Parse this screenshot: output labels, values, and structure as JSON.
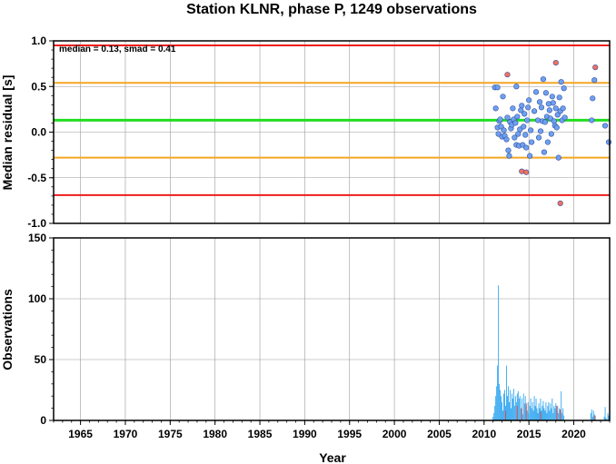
{
  "chart_data": [
    {
      "type": "scatter",
      "title": "Station KLNR, phase P, 1249 observations",
      "xlabel": "",
      "ylabel": "Median residual [s]",
      "xlim": [
        1962,
        2024
      ],
      "ylim": [
        -1.0,
        1.0
      ],
      "y_ticks": [
        "1.0",
        "0.5",
        "0.0",
        "-0.5",
        "-1.0"
      ],
      "annotation": "median = 0.13, smad = 0.41",
      "grid": true,
      "reference_lines": [
        {
          "value": 0.95,
          "color": "#ee1c1c"
        },
        {
          "value": 0.54,
          "color": "#f5a623"
        },
        {
          "value": 0.13,
          "color": "#22dd22"
        },
        {
          "value": -0.28,
          "color": "#f5a623"
        },
        {
          "value": -0.69,
          "color": "#ee1c1c"
        }
      ],
      "series": [
        {
          "color": "#6fa0f0",
          "points": [
            [
              2011.2,
              0.49
            ],
            [
              2011.3,
              0.26
            ],
            [
              2011.5,
              0.49
            ],
            [
              2011.5,
              0.05
            ],
            [
              2011.6,
              -0.02
            ],
            [
              2011.7,
              0.12
            ],
            [
              2011.8,
              0.14
            ],
            [
              2011.9,
              0.06
            ],
            [
              2012.0,
              -0.05
            ],
            [
              2012.1,
              0.39
            ],
            [
              2012.2,
              0.02
            ],
            [
              2012.3,
              -0.04
            ],
            [
              2012.5,
              -0.08
            ],
            [
              2012.6,
              0.16
            ],
            [
              2012.7,
              -0.2
            ],
            [
              2012.8,
              -0.26
            ],
            [
              2012.9,
              0.11
            ],
            [
              2013.0,
              0.04
            ],
            [
              2013.1,
              0.08
            ],
            [
              2013.2,
              0.26
            ],
            [
              2013.3,
              0.14
            ],
            [
              2013.4,
              -0.06
            ],
            [
              2013.5,
              0.1
            ],
            [
              2013.6,
              0.5
            ],
            [
              2013.6,
              -0.14
            ],
            [
              2013.7,
              0.17
            ],
            [
              2013.8,
              -0.02
            ],
            [
              2013.9,
              -0.15
            ],
            [
              2014.0,
              0.03
            ],
            [
              2014.1,
              0.24
            ],
            [
              2014.2,
              0.29
            ],
            [
              2014.3,
              -0.14
            ],
            [
              2014.4,
              0.06
            ],
            [
              2014.5,
              0.2
            ],
            [
              2014.6,
              -0.03
            ],
            [
              2014.7,
              -0.17
            ],
            [
              2014.8,
              0.13
            ],
            [
              2014.9,
              0.27
            ],
            [
              2015.0,
              0.35
            ],
            [
              2015.1,
              -0.26
            ],
            [
              2015.2,
              0.02
            ],
            [
              2015.3,
              -0.11
            ],
            [
              2015.6,
              0.23
            ],
            [
              2015.8,
              0.44
            ],
            [
              2016.0,
              0.13
            ],
            [
              2016.1,
              -0.06
            ],
            [
              2016.2,
              0.33
            ],
            [
              2016.3,
              0.01
            ],
            [
              2016.4,
              0.27
            ],
            [
              2016.5,
              0.12
            ],
            [
              2016.6,
              0.58
            ],
            [
              2016.7,
              -0.22
            ],
            [
              2016.8,
              0.11
            ],
            [
              2016.9,
              0.43
            ],
            [
              2017.0,
              0.17
            ],
            [
              2017.1,
              -0.11
            ],
            [
              2017.2,
              0.31
            ],
            [
              2017.3,
              0.24
            ],
            [
              2017.4,
              0.15
            ],
            [
              2017.5,
              -0.02
            ],
            [
              2017.6,
              0.39
            ],
            [
              2017.7,
              0.32
            ],
            [
              2017.8,
              0.12
            ],
            [
              2017.9,
              0.07
            ],
            [
              2018.0,
              0.26
            ],
            [
              2018.1,
              0.05
            ],
            [
              2018.2,
              0.19
            ],
            [
              2018.3,
              -0.28
            ],
            [
              2018.4,
              0.38
            ],
            [
              2018.5,
              0.23
            ],
            [
              2018.6,
              0.55
            ],
            [
              2018.7,
              0.13
            ],
            [
              2018.8,
              0.26
            ],
            [
              2018.9,
              0.48
            ],
            [
              2019.0,
              0.16
            ],
            [
              2022.0,
              0.13
            ],
            [
              2022.1,
              0.37
            ],
            [
              2022.3,
              0.57
            ],
            [
              2023.5,
              0.07
            ],
            [
              2023.9,
              -0.11
            ]
          ]
        },
        {
          "color": "#f07060",
          "points": [
            [
              2012.6,
              0.63
            ],
            [
              2014.2,
              -0.43
            ],
            [
              2014.7,
              -0.44
            ],
            [
              2018.0,
              0.76
            ],
            [
              2018.5,
              -0.78
            ],
            [
              2022.4,
              0.71
            ]
          ]
        }
      ]
    },
    {
      "type": "bar",
      "title": "",
      "xlabel": "Year",
      "ylabel": "Observations",
      "xlim": [
        1962,
        2024
      ],
      "ylim": [
        0,
        150
      ],
      "y_ticks": [
        "150",
        "100",
        "50",
        "0"
      ],
      "x_ticks": [
        "1965",
        "1970",
        "1975",
        "1980",
        "1985",
        "1990",
        "1995",
        "2000",
        "2005",
        "2010",
        "2015",
        "2020"
      ],
      "grid": true,
      "series": [
        {
          "color": "#35a8f0",
          "x": [
            2011.0,
            2011.1,
            2011.2,
            2011.3,
            2011.4,
            2011.5,
            2011.6,
            2011.7,
            2011.8,
            2011.9,
            2012.0,
            2012.1,
            2012.2,
            2012.3,
            2012.4,
            2012.5,
            2012.6,
            2012.7,
            2012.8,
            2012.9,
            2013.0,
            2013.1,
            2013.2,
            2013.3,
            2013.4,
            2013.5,
            2013.6,
            2013.7,
            2013.8,
            2013.9,
            2014.0,
            2014.1,
            2014.2,
            2014.3,
            2014.4,
            2014.5,
            2014.6,
            2014.7,
            2014.8,
            2014.9,
            2015.0,
            2015.1,
            2015.2,
            2015.3,
            2015.4,
            2015.5,
            2015.6,
            2015.7,
            2015.8,
            2015.9,
            2016.0,
            2016.1,
            2016.2,
            2016.3,
            2016.4,
            2016.5,
            2016.6,
            2016.7,
            2016.8,
            2016.9,
            2017.0,
            2017.1,
            2017.2,
            2017.3,
            2017.4,
            2017.5,
            2017.6,
            2017.7,
            2017.8,
            2017.9,
            2018.0,
            2018.1,
            2018.2,
            2018.3,
            2018.4,
            2018.5,
            2018.6,
            2018.7,
            2018.8,
            2018.9,
            2021.9,
            2022.0,
            2022.1,
            2022.2,
            2022.3,
            2022.4,
            2023.4,
            2023.5,
            2023.6,
            2023.8,
            2023.9
          ],
          "values": [
            3,
            6,
            12,
            20,
            28,
            45,
            111,
            30,
            25,
            20,
            15,
            8,
            22,
            25,
            12,
            45,
            20,
            28,
            15,
            25,
            10,
            22,
            18,
            26,
            12,
            20,
            15,
            22,
            24,
            18,
            20,
            10,
            18,
            5,
            22,
            14,
            20,
            12,
            8,
            15,
            6,
            12,
            18,
            10,
            15,
            8,
            20,
            12,
            18,
            10,
            6,
            14,
            10,
            18,
            8,
            12,
            16,
            10,
            8,
            15,
            6,
            12,
            15,
            8,
            14,
            10,
            18,
            6,
            12,
            10,
            14,
            8,
            12,
            6,
            10,
            8,
            24,
            6,
            10,
            4,
            6,
            9,
            3,
            8,
            5,
            4,
            3,
            11,
            2,
            6,
            4
          ]
        },
        {
          "color": "#e8403a",
          "x": [
            2012.4,
            2013.7,
            2014.2,
            2014.7,
            2016.3,
            2018.1,
            2018.5,
            2022.3
          ],
          "values": [
            8,
            12,
            10,
            14,
            7,
            12,
            9,
            4
          ]
        }
      ]
    }
  ]
}
